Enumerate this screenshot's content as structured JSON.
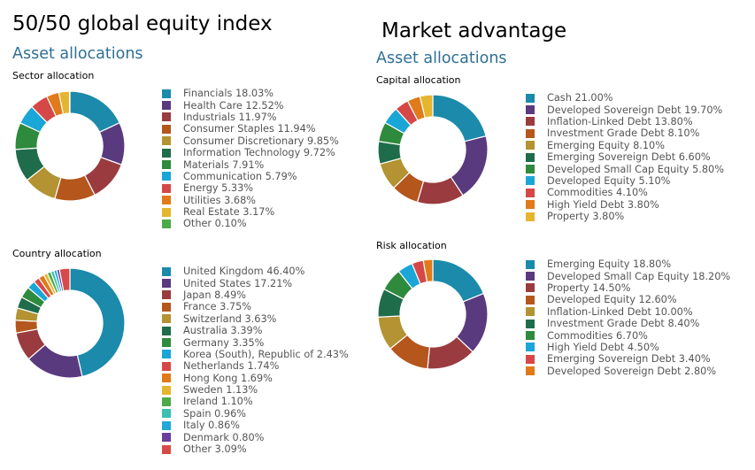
{
  "headings": {
    "left_title": "50/50 global equity index",
    "left_subtitle": "Asset allocations",
    "right_title": "Market advantage",
    "right_subtitle": "Asset allocations"
  },
  "chart_data": [
    {
      "id": "sector",
      "type": "pie",
      "title": "Sector allocation",
      "categories": [
        "Financials 18.03%",
        "Health Care 12.52%",
        "Industrials 11.97%",
        "Consumer Staples 11.94%",
        "Consumer Discretionary 9.85%",
        "Information Technology 9.72%",
        "Materials 7.91%",
        "Communication 5.79%",
        "Energy 5.33%",
        "Utilities 3.68%",
        "Real Estate 3.17%",
        "Other 0.10%"
      ],
      "values": [
        18.03,
        12.52,
        11.97,
        11.94,
        9.85,
        9.72,
        7.91,
        5.79,
        5.33,
        3.68,
        3.17,
        0.1
      ],
      "colors": [
        "#1b8aab",
        "#5a3a7e",
        "#9a3b3f",
        "#b5561d",
        "#b39332",
        "#1f6c4a",
        "#2e8a3c",
        "#1aa6d6",
        "#d64848",
        "#e07a1a",
        "#e6b52f",
        "#4caa4a"
      ]
    },
    {
      "id": "country",
      "type": "pie",
      "title": "Country allocation",
      "categories": [
        "United Kingdom 46.40%",
        "United States 17.21%",
        "Japan 8.49%",
        "France 3.75%",
        "Switzerland 3.63%",
        "Australia 3.39%",
        "Germany 3.35%",
        "Korea (South), Republic of 2.43%",
        "Netherlands 1.74%",
        "Hong Kong 1.69%",
        "Sweden 1.13%",
        "Ireland 1.10%",
        "Spain 0.96%",
        "Italy 0.86%",
        "Denmark 0.80%",
        "Other 3.09%"
      ],
      "values": [
        46.4,
        17.21,
        8.49,
        3.75,
        3.63,
        3.39,
        3.35,
        2.43,
        1.74,
        1.69,
        1.13,
        1.1,
        0.96,
        0.86,
        0.8,
        3.09
      ],
      "colors": [
        "#1b8aab",
        "#5a3a7e",
        "#9a3b3f",
        "#b5561d",
        "#b39332",
        "#1f6c4a",
        "#2e8a3c",
        "#1aa6d6",
        "#d64848",
        "#e07a1a",
        "#e6b52f",
        "#4caa4a",
        "#3dbfb0",
        "#22a8d8",
        "#6a3d9e",
        "#d74a4a"
      ]
    },
    {
      "id": "capital",
      "type": "pie",
      "title": "Capital allocation",
      "categories": [
        "Cash 21.00%",
        "Developed Sovereign Debt 19.70%",
        "Inflation-Linked Debt 13.80%",
        "Investment Grade Debt 8.10%",
        "Emerging Equity 8.10%",
        "Emerging Sovereign Debt 6.60%",
        "Developed Small Cap Equity 5.80%",
        "Developed Equity 5.10%",
        "Commodities 4.10%",
        "High Yield Debt 3.80%",
        "Property 3.80%"
      ],
      "values": [
        21.0,
        19.7,
        13.8,
        8.1,
        8.1,
        6.6,
        5.8,
        5.1,
        4.1,
        3.8,
        3.8
      ],
      "colors": [
        "#1b8aab",
        "#5a3a7e",
        "#9a3b3f",
        "#b5561d",
        "#b39332",
        "#1f6c4a",
        "#2e8a3c",
        "#1aa6d6",
        "#d64848",
        "#e07a1a",
        "#e6b52f"
      ]
    },
    {
      "id": "risk",
      "type": "pie",
      "title": "Risk allocation",
      "categories": [
        "Emerging Equity 18.80%",
        "Developed Small Cap Equity 18.20%",
        "Property 14.50%",
        "Developed Equity 12.60%",
        "Inflation-Linked Debt 10.00%",
        "Investment Grade Debt 8.40%",
        "Commodities 6.70%",
        "High Yield Debt 4.50%",
        "Emerging Sovereign Debt 3.40%",
        "Developed Sovereign Debt 2.80%"
      ],
      "values": [
        18.8,
        18.2,
        14.5,
        12.6,
        10.0,
        8.4,
        6.7,
        4.5,
        3.4,
        2.8
      ],
      "colors": [
        "#1b8aab",
        "#5a3a7e",
        "#9a3b3f",
        "#b5561d",
        "#b39332",
        "#1f6c4a",
        "#2e8a3c",
        "#1aa6d6",
        "#d64848",
        "#e07a1a"
      ]
    }
  ]
}
